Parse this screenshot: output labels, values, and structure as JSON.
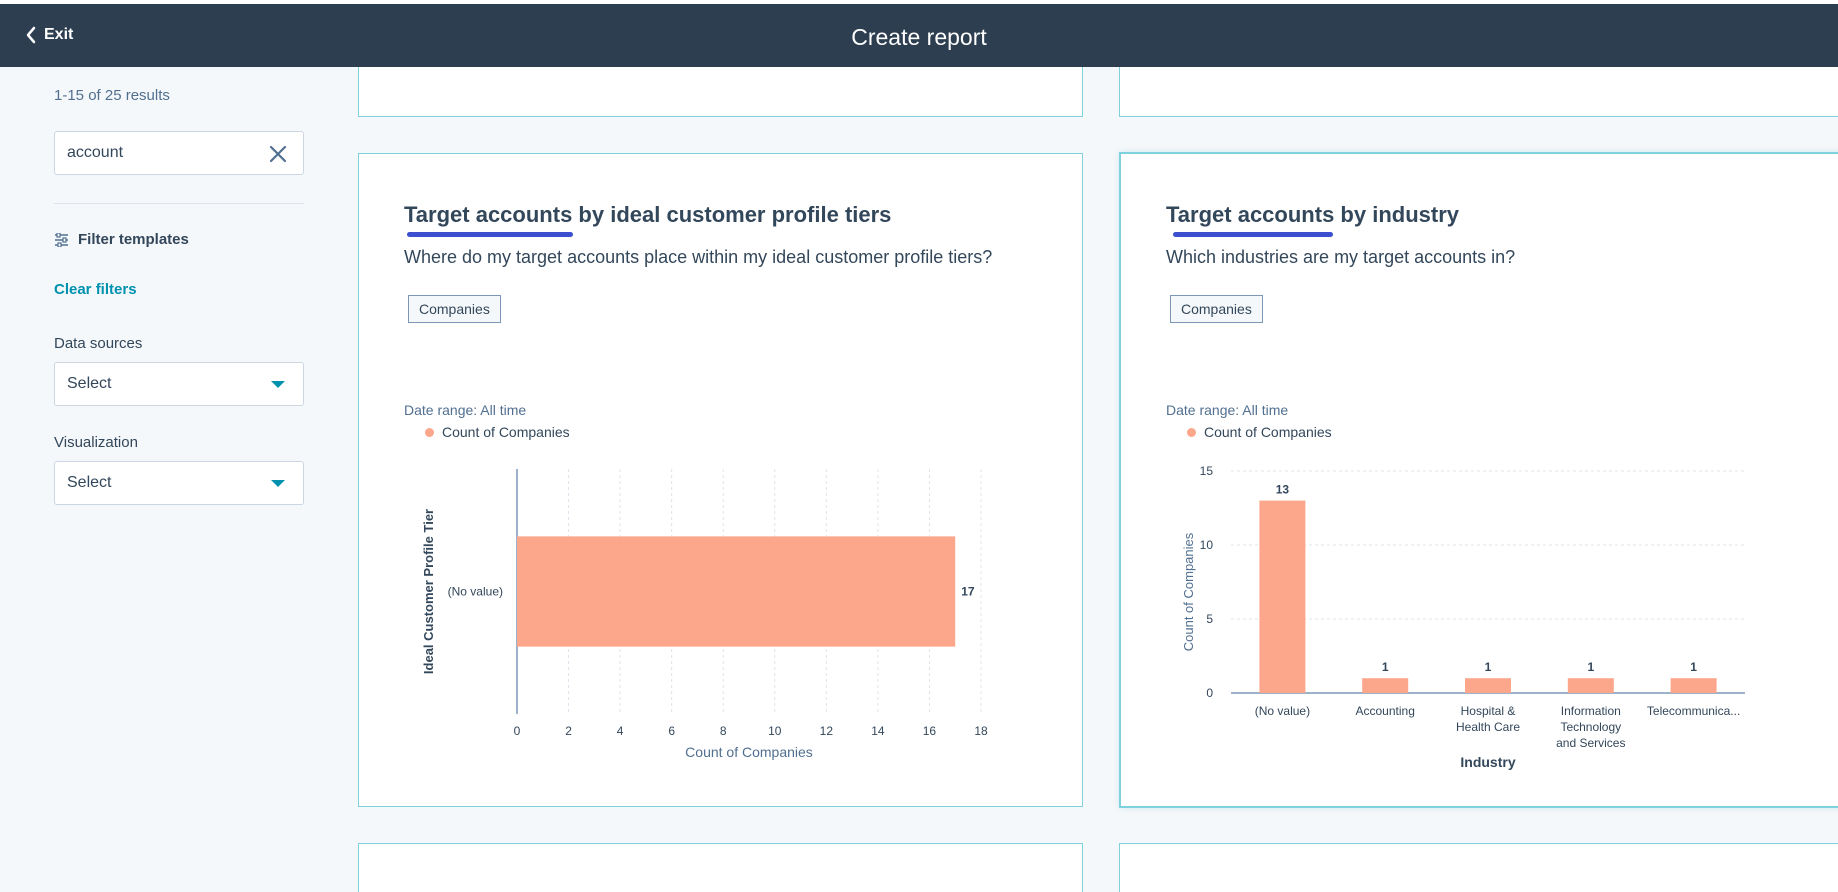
{
  "header": {
    "exit_label": "Exit",
    "title": "Create report"
  },
  "sidebar": {
    "results_count": "1-15 of 25 results",
    "search": {
      "value": "account"
    },
    "filter_templates_label": "Filter templates",
    "clear_filters_label": "Clear filters",
    "data_sources": {
      "label": "Data sources",
      "value": "Select"
    },
    "visualization": {
      "label": "Visualization",
      "value": "Select"
    }
  },
  "colors": {
    "bar": "#fca68b",
    "accent": "#0091ae",
    "header_bg": "#2d3e50",
    "underline": "#3b4fcf"
  },
  "cards": [
    {
      "title_highlight": "Target accounts",
      "title_rest": " by ideal customer profile tiers",
      "subtitle": "Where do my target accounts place within my ideal customer profile tiers?",
      "tag": "Companies",
      "date_range": "Date range: All time",
      "legend": "Count of Companies"
    },
    {
      "title_highlight": "Target accounts",
      "title_rest": " by industry",
      "subtitle": "Which industries are my target accounts in?",
      "tag": "Companies",
      "date_range": "Date range: All time",
      "legend": "Count of Companies"
    }
  ],
  "chart_data": [
    {
      "type": "bar",
      "orientation": "horizontal",
      "categories": [
        "(No value)"
      ],
      "values": [
        17
      ],
      "data_labels": [
        "17"
      ],
      "xlabel": "Count of Companies",
      "ylabel": "Ideal Customer Profile Tier",
      "xlim": [
        0,
        18
      ],
      "xticks": [
        "0",
        "2",
        "4",
        "6",
        "8",
        "10",
        "12",
        "14",
        "16",
        "18"
      ],
      "grid": true
    },
    {
      "type": "bar",
      "orientation": "vertical",
      "categories": [
        "(No value)",
        "Accounting",
        "Hospital & Health Care",
        "Information Technology and Services",
        "Telecommunica..."
      ],
      "category_lines": [
        [
          "(No value)"
        ],
        [
          "Accounting"
        ],
        [
          "Hospital &",
          "Health Care"
        ],
        [
          "Information",
          "Technology",
          "and Services"
        ],
        [
          "Telecommunica..."
        ]
      ],
      "values": [
        13,
        1,
        1,
        1,
        1
      ],
      "data_labels": [
        "13",
        "1",
        "1",
        "1",
        "1"
      ],
      "xlabel": "Industry",
      "ylabel": "Count of Companies",
      "ylim": [
        0,
        15
      ],
      "yticks": [
        "0",
        "5",
        "10",
        "15"
      ],
      "grid": true
    }
  ]
}
